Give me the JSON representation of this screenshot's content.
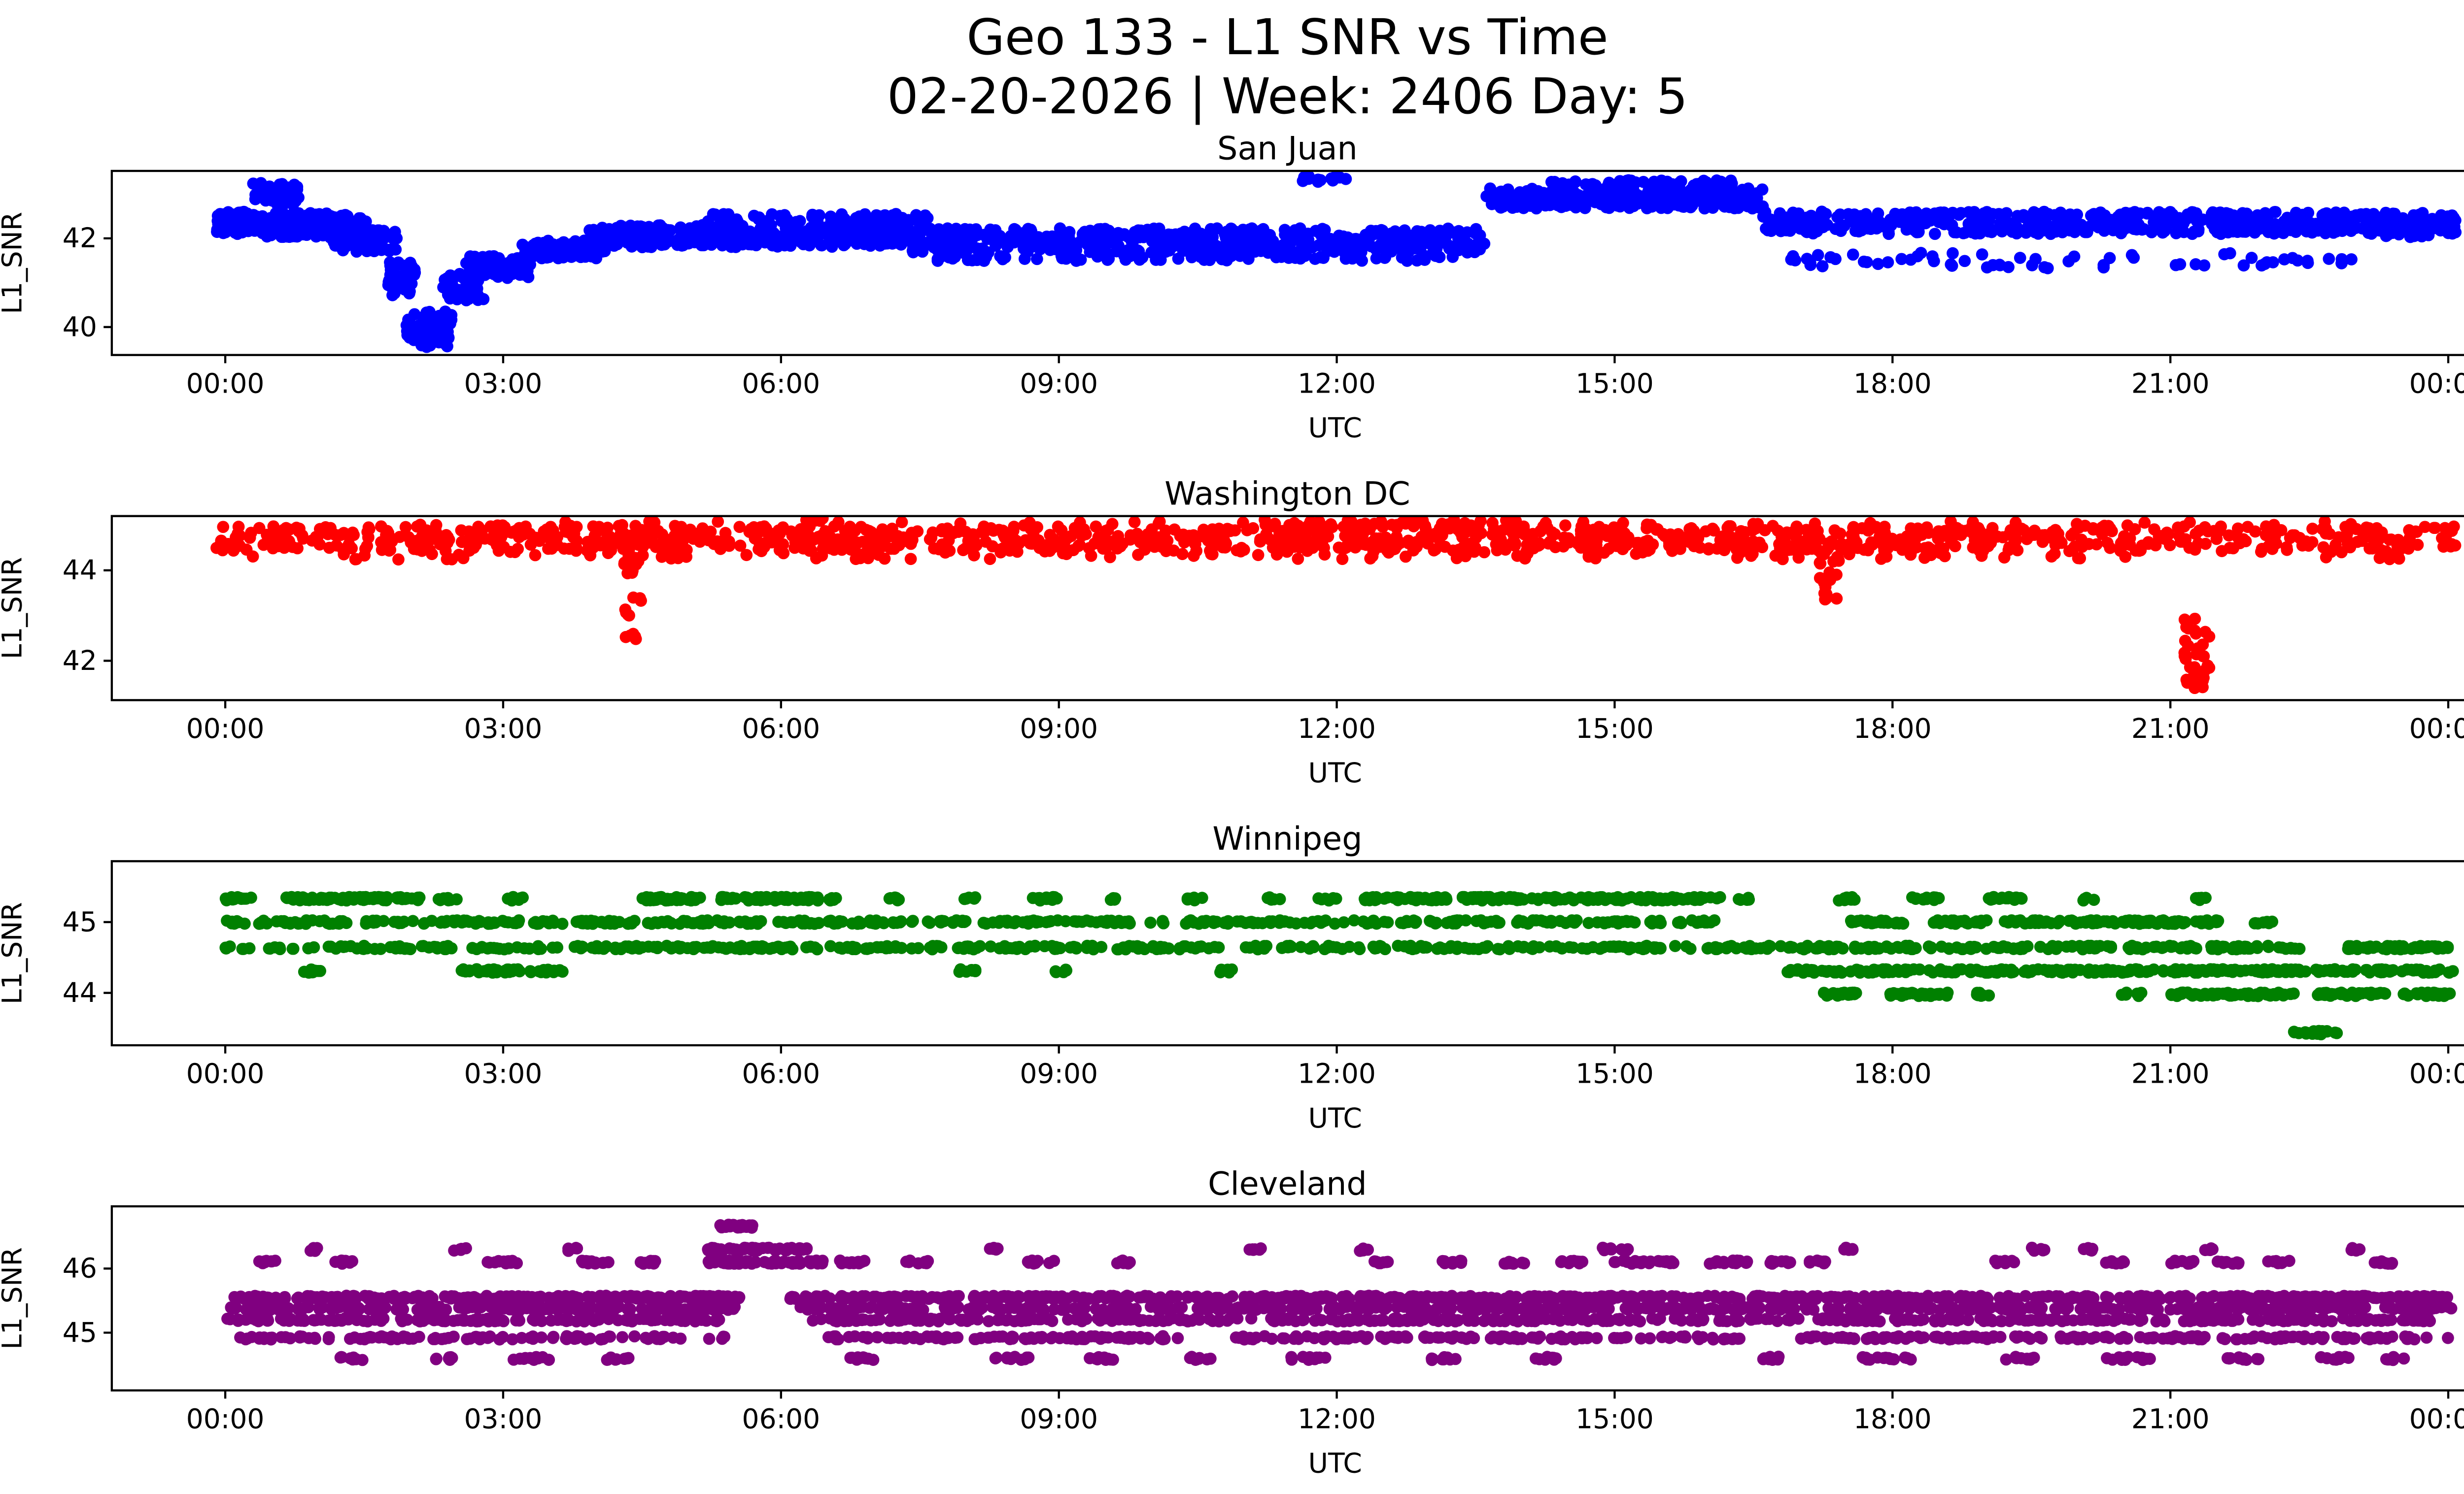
{
  "figure": {
    "title": "Geo 133 - L1 SNR vs Time",
    "subtitle": "02-20-2026 | Week: 2406 Day: 5",
    "background_color": "#ffffff",
    "text_color": "#000000"
  },
  "snr_bands_format": "[start_hour, end_hour, snr_center, snr_spread, point_count]",
  "chart_data": [
    {
      "type": "scatter",
      "title": "San Juan",
      "series_color": "#0000ff",
      "xlabel": "UTC",
      "ylabel": "L1_SNR",
      "xtick_hours": [
        0,
        3,
        6,
        9,
        12,
        15,
        18,
        21,
        24
      ],
      "xtick_labels": [
        "00:00",
        "03:00",
        "06:00",
        "09:00",
        "12:00",
        "15:00",
        "18:00",
        "21:00",
        "00:00"
      ],
      "yticks": [
        40,
        42
      ],
      "ylim": [
        39.37,
        43.52
      ],
      "xlim_hours": [
        -1.2,
        25.2
      ],
      "grid": false,
      "legend": "none",
      "snr_bands": [
        [
          -0.1,
          0.35,
          42.35,
          0.5,
          90
        ],
        [
          0.3,
          0.8,
          43.0,
          0.5,
          55
        ],
        [
          0.35,
          1.55,
          42.3,
          0.55,
          170
        ],
        [
          1.1,
          1.85,
          41.95,
          0.5,
          85
        ],
        [
          1.75,
          2.05,
          41.1,
          0.8,
          50
        ],
        [
          1.95,
          2.45,
          40.0,
          0.7,
          65
        ],
        [
          2.1,
          2.4,
          39.7,
          0.3,
          18
        ],
        [
          2.35,
          2.8,
          40.9,
          0.6,
          50
        ],
        [
          2.6,
          3.3,
          41.35,
          0.5,
          75
        ],
        [
          3.2,
          4.1,
          41.75,
          0.4,
          100
        ],
        [
          3.9,
          7.4,
          42.05,
          0.5,
          340
        ],
        [
          5.1,
          7.6,
          42.45,
          0.2,
          65
        ],
        [
          7.4,
          13.6,
          41.95,
          0.55,
          480
        ],
        [
          7.6,
          13.4,
          41.55,
          0.12,
          75
        ],
        [
          11.6,
          12.1,
          43.35,
          0.15,
          12
        ],
        [
          13.6,
          16.6,
          42.9,
          0.45,
          260
        ],
        [
          14.3,
          16.3,
          43.25,
          0.12,
          55
        ],
        [
          16.6,
          23.3,
          42.35,
          0.5,
          520
        ],
        [
          16.9,
          23.0,
          41.5,
          0.35,
          65
        ],
        [
          23.3,
          24.1,
          42.3,
          0.55,
          100
        ]
      ]
    },
    {
      "type": "scatter",
      "title": "Washington DC",
      "series_color": "#ff0000",
      "xlabel": "UTC",
      "ylabel": "L1_SNR",
      "xtick_hours": [
        0,
        3,
        6,
        9,
        12,
        15,
        18,
        21,
        24
      ],
      "xtick_labels": [
        "00:00",
        "03:00",
        "06:00",
        "09:00",
        "12:00",
        "15:00",
        "18:00",
        "21:00",
        "00:00"
      ],
      "yticks": [
        42,
        44
      ],
      "ylim": [
        41.13,
        45.2
      ],
      "xlim_hours": [
        -1.2,
        25.2
      ],
      "grid": false,
      "legend": "none",
      "snr_bands": [
        [
          -0.1,
          24.1,
          44.7,
          0.55,
          1150
        ],
        [
          0.15,
          23.9,
          44.33,
          0.18,
          120
        ],
        [
          2.0,
          23.0,
          45.02,
          0.12,
          65
        ],
        [
          11.2,
          13.95,
          45.05,
          0.15,
          45
        ],
        [
          6.25,
          6.45,
          45.12,
          0.1,
          8
        ],
        [
          4.3,
          4.5,
          43.6,
          1.5,
          20
        ],
        [
          4.32,
          4.45,
          42.62,
          0.3,
          6
        ],
        [
          17.2,
          17.45,
          43.95,
          0.85,
          12
        ],
        [
          17.25,
          17.4,
          43.45,
          0.2,
          5
        ],
        [
          21.15,
          21.42,
          42.2,
          1.5,
          30
        ],
        [
          21.18,
          21.36,
          41.52,
          0.45,
          12
        ]
      ]
    },
    {
      "type": "scatter",
      "title": "Winnipeg",
      "series_color": "#008000",
      "xlabel": "UTC",
      "ylabel": "L1_SNR",
      "xtick_hours": [
        0,
        3,
        6,
        9,
        12,
        15,
        18,
        21,
        24
      ],
      "xtick_labels": [
        "00:00",
        "03:00",
        "06:00",
        "09:00",
        "12:00",
        "15:00",
        "18:00",
        "21:00",
        "00:00"
      ],
      "yticks": [
        44,
        45
      ],
      "ylim": [
        43.26,
        45.86
      ],
      "xlim_hours": [
        -1.2,
        25.2
      ],
      "grid": false,
      "legend": "none",
      "snr_bands": [
        [
          0.0,
          0.3,
          45.33,
          0.05,
          16
        ],
        [
          0.65,
          1.75,
          45.33,
          0.05,
          80
        ],
        [
          1.85,
          2.1,
          45.33,
          0.05,
          15
        ],
        [
          2.3,
          2.5,
          45.33,
          0.05,
          10
        ],
        [
          3.05,
          3.25,
          45.33,
          0.05,
          7
        ],
        [
          4.5,
          5.15,
          45.33,
          0.05,
          45
        ],
        [
          5.3,
          6.4,
          45.33,
          0.05,
          75
        ],
        [
          6.5,
          6.65,
          45.33,
          0.05,
          7
        ],
        [
          7.1,
          7.3,
          45.33,
          0.05,
          7
        ],
        [
          7.95,
          8.1,
          45.33,
          0.05,
          5
        ],
        [
          8.7,
          9.0,
          45.33,
          0.05,
          14
        ],
        [
          9.55,
          9.7,
          45.33,
          0.05,
          5
        ],
        [
          10.35,
          10.55,
          45.33,
          0.05,
          7
        ],
        [
          11.25,
          11.4,
          45.33,
          0.05,
          5
        ],
        [
          11.8,
          12.0,
          45.33,
          0.05,
          8
        ],
        [
          12.3,
          13.2,
          45.33,
          0.05,
          55
        ],
        [
          13.35,
          16.15,
          45.33,
          0.05,
          150
        ],
        [
          16.3,
          16.45,
          45.33,
          0.05,
          5
        ],
        [
          17.4,
          17.6,
          45.33,
          0.05,
          8
        ],
        [
          18.2,
          18.5,
          45.33,
          0.05,
          12
        ],
        [
          19.0,
          19.45,
          45.33,
          0.05,
          16
        ],
        [
          20.05,
          20.2,
          45.33,
          0.05,
          5
        ],
        [
          21.25,
          21.4,
          45.33,
          0.05,
          5
        ],
        [
          0.0,
          16.2,
          45.0,
          0.05,
          430
        ],
        [
          17.5,
          18.15,
          45.0,
          0.05,
          30
        ],
        [
          18.4,
          19.05,
          45.0,
          0.05,
          26
        ],
        [
          19.2,
          21.65,
          45.0,
          0.05,
          110
        ],
        [
          21.9,
          22.1,
          45.0,
          0.05,
          8
        ],
        [
          0.0,
          22.4,
          44.64,
          0.05,
          560
        ],
        [
          22.9,
          24.05,
          44.64,
          0.05,
          55
        ],
        [
          0.85,
          1.05,
          44.31,
          0.05,
          8
        ],
        [
          2.55,
          3.65,
          44.31,
          0.05,
          55
        ],
        [
          7.9,
          8.1,
          44.31,
          0.05,
          7
        ],
        [
          8.95,
          9.1,
          44.31,
          0.05,
          5
        ],
        [
          10.7,
          10.9,
          44.31,
          0.05,
          7
        ],
        [
          16.85,
          24.05,
          44.31,
          0.05,
          300
        ],
        [
          17.25,
          17.65,
          43.98,
          0.05,
          18
        ],
        [
          17.95,
          18.65,
          43.98,
          0.05,
          30
        ],
        [
          18.9,
          19.1,
          43.98,
          0.05,
          7
        ],
        [
          20.45,
          20.7,
          43.98,
          0.05,
          7
        ],
        [
          21.0,
          22.35,
          43.98,
          0.05,
          60
        ],
        [
          22.55,
          23.35,
          43.98,
          0.05,
          38
        ],
        [
          23.5,
          24.05,
          43.98,
          0.05,
          26
        ],
        [
          22.3,
          22.8,
          43.44,
          0.05,
          20
        ]
      ]
    },
    {
      "type": "scatter",
      "title": "Cleveland",
      "series_color": "#800080",
      "xlabel": "UTC",
      "ylabel": "L1_SNR",
      "xtick_hours": [
        0,
        3,
        6,
        9,
        12,
        15,
        18,
        21,
        24
      ],
      "xtick_labels": [
        "00:00",
        "03:00",
        "06:00",
        "09:00",
        "12:00",
        "15:00",
        "18:00",
        "21:00",
        "00:00"
      ],
      "yticks": [
        45,
        46
      ],
      "ylim": [
        44.1,
        46.97
      ],
      "xlim_hours": [
        -1.2,
        25.2
      ],
      "grid": false,
      "legend": "none",
      "snr_bands": [
        [
          5.3,
          5.7,
          46.66,
          0.05,
          26
        ],
        [
          5.2,
          6.3,
          46.3,
          0.05,
          50
        ],
        [
          0.85,
          1.0,
          46.3,
          0.05,
          5
        ],
        [
          2.45,
          2.6,
          46.3,
          0.05,
          5
        ],
        [
          3.65,
          3.8,
          46.3,
          0.05,
          5
        ],
        [
          8.2,
          8.35,
          46.3,
          0.05,
          5
        ],
        [
          11.0,
          11.2,
          46.3,
          0.05,
          7
        ],
        [
          12.2,
          12.35,
          46.3,
          0.05,
          5
        ],
        [
          14.85,
          15.15,
          46.3,
          0.05,
          10
        ],
        [
          17.45,
          17.6,
          46.3,
          0.05,
          5
        ],
        [
          19.5,
          19.65,
          46.3,
          0.05,
          5
        ],
        [
          20.05,
          20.2,
          46.3,
          0.05,
          5
        ],
        [
          21.35,
          21.5,
          46.3,
          0.05,
          5
        ],
        [
          22.95,
          23.1,
          46.3,
          0.05,
          4
        ],
        [
          0.35,
          0.55,
          46.1,
          0.05,
          8
        ],
        [
          1.15,
          1.45,
          46.1,
          0.05,
          12
        ],
        [
          2.8,
          3.15,
          46.1,
          0.05,
          14
        ],
        [
          3.85,
          4.15,
          46.1,
          0.05,
          12
        ],
        [
          4.4,
          4.65,
          46.1,
          0.05,
          9
        ],
        [
          5.15,
          6.45,
          46.1,
          0.05,
          65
        ],
        [
          6.6,
          6.9,
          46.1,
          0.05,
          11
        ],
        [
          7.3,
          7.6,
          46.1,
          0.05,
          11
        ],
        [
          8.6,
          8.95,
          46.1,
          0.05,
          12
        ],
        [
          9.6,
          9.8,
          46.1,
          0.05,
          7
        ],
        [
          12.4,
          12.65,
          46.1,
          0.05,
          9
        ],
        [
          13.1,
          13.35,
          46.1,
          0.05,
          9
        ],
        [
          13.8,
          14.05,
          46.1,
          0.05,
          9
        ],
        [
          14.4,
          14.65,
          46.1,
          0.05,
          9
        ],
        [
          15.0,
          15.65,
          46.1,
          0.05,
          22
        ],
        [
          16.0,
          16.45,
          46.1,
          0.05,
          16
        ],
        [
          16.65,
          16.9,
          46.1,
          0.05,
          9
        ],
        [
          17.05,
          17.3,
          46.1,
          0.05,
          9
        ],
        [
          19.1,
          19.35,
          46.1,
          0.05,
          9
        ],
        [
          20.3,
          20.55,
          46.1,
          0.05,
          9
        ],
        [
          21.0,
          21.25,
          46.1,
          0.05,
          9
        ],
        [
          21.5,
          21.75,
          46.1,
          0.05,
          9
        ],
        [
          22.05,
          22.3,
          46.1,
          0.05,
          7
        ],
        [
          23.2,
          23.45,
          46.1,
          0.05,
          9
        ],
        [
          0.0,
          5.55,
          45.55,
          0.05,
          240
        ],
        [
          6.1,
          24.05,
          45.55,
          0.05,
          640
        ],
        [
          0.0,
          5.5,
          45.38,
          0.05,
          200
        ],
        [
          6.2,
          24.05,
          45.38,
          0.05,
          560
        ],
        [
          0.0,
          5.45,
          45.2,
          0.05,
          170
        ],
        [
          6.3,
          24.05,
          45.2,
          0.05,
          470
        ],
        [
          0.15,
          5.4,
          44.92,
          0.05,
          110
        ],
        [
          6.5,
          10.3,
          44.92,
          0.05,
          95
        ],
        [
          10.9,
          16.4,
          44.92,
          0.05,
          130
        ],
        [
          17.0,
          24.0,
          44.92,
          0.05,
          170
        ],
        [
          1.2,
          1.5,
          44.6,
          0.05,
          9
        ],
        [
          2.2,
          2.5,
          44.6,
          0.05,
          9
        ],
        [
          3.1,
          3.5,
          44.6,
          0.05,
          11
        ],
        [
          4.1,
          4.4,
          44.6,
          0.05,
          9
        ],
        [
          6.6,
          7.0,
          44.6,
          0.05,
          11
        ],
        [
          8.3,
          8.7,
          44.6,
          0.05,
          11
        ],
        [
          9.3,
          9.6,
          44.6,
          0.05,
          9
        ],
        [
          10.4,
          10.7,
          44.6,
          0.05,
          9
        ],
        [
          11.5,
          11.9,
          44.6,
          0.05,
          11
        ],
        [
          13.0,
          13.3,
          44.6,
          0.05,
          9
        ],
        [
          14.1,
          14.4,
          44.6,
          0.05,
          9
        ],
        [
          16.5,
          16.8,
          44.6,
          0.05,
          9
        ],
        [
          17.6,
          18.2,
          44.6,
          0.05,
          16
        ],
        [
          19.2,
          19.6,
          44.6,
          0.05,
          11
        ],
        [
          20.3,
          20.8,
          44.6,
          0.05,
          13
        ],
        [
          21.6,
          22.0,
          44.6,
          0.05,
          11
        ],
        [
          22.6,
          23.0,
          44.6,
          0.05,
          11
        ],
        [
          23.3,
          23.6,
          44.6,
          0.05,
          9
        ]
      ]
    }
  ]
}
